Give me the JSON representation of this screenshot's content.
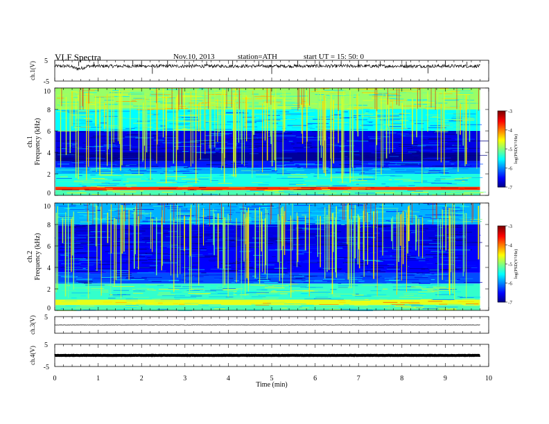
{
  "header": {
    "title": "VLF  Spectra",
    "date": "Nov.10, 2013",
    "station": "station=ATH",
    "start": "start  UT  =   15: 50: 0"
  },
  "chart_data": [
    {
      "type": "line",
      "panel": "ch1",
      "ylabel": "ch.1(V)",
      "ylim": [
        -5,
        5
      ],
      "yticks": [
        "5",
        "-5"
      ],
      "baseline_v": 2.2,
      "spikes": [
        {
          "t": 0.55,
          "v": 4.5
        },
        {
          "t": 0.9,
          "v": 4.2
        },
        {
          "t": 1.8,
          "v": 4.6
        },
        {
          "t": 2.0,
          "v": 4.4
        },
        {
          "t": 2.25,
          "v": -1.5
        },
        {
          "t": 2.6,
          "v": 4.7
        },
        {
          "t": 3.1,
          "v": 4.3
        },
        {
          "t": 3.5,
          "v": 4.5
        },
        {
          "t": 4.1,
          "v": 4.8
        },
        {
          "t": 4.7,
          "v": 4.6
        },
        {
          "t": 5.0,
          "v": -1.6
        },
        {
          "t": 5.6,
          "v": 4.6
        },
        {
          "t": 6.1,
          "v": 4.5
        },
        {
          "t": 6.6,
          "v": 4.3
        },
        {
          "t": 7.0,
          "v": 4.7
        },
        {
          "t": 7.5,
          "v": 4.6
        },
        {
          "t": 8.1,
          "v": 4.4
        },
        {
          "t": 8.6,
          "v": -1.3
        },
        {
          "t": 9.0,
          "v": 4.6
        },
        {
          "t": 9.5,
          "v": 4.3
        }
      ]
    },
    {
      "type": "heatmap",
      "panel": "ch1-spectrogram",
      "ylabel": "ch.1\nFrequency  (kHz)",
      "ylim": [
        0,
        10
      ],
      "yticks": [
        "0",
        "2",
        "4",
        "6",
        "8",
        "10"
      ],
      "colorbar": {
        "label": "log(PSD(V²/Hz)",
        "ticks": [
          "-3",
          "-4",
          "-5",
          "-6",
          "-7"
        ],
        "range": [
          -7,
          -3
        ]
      },
      "bands": [
        {
          "f0": 0.0,
          "f1": 0.5,
          "level": -5.2
        },
        {
          "f0": 0.5,
          "f1": 0.8,
          "level": -3.7
        },
        {
          "f0": 0.8,
          "f1": 2.0,
          "level": -5.4
        },
        {
          "f0": 2.0,
          "f1": 2.6,
          "level": -5.8
        },
        {
          "f0": 2.6,
          "f1": 3.2,
          "level": -6.4
        },
        {
          "f0": 3.2,
          "f1": 4.0,
          "level": -6.9
        },
        {
          "f0": 4.0,
          "f1": 6.0,
          "level": -6.6
        },
        {
          "f0": 6.0,
          "f1": 8.0,
          "level": -5.5
        },
        {
          "f0": 8.0,
          "f1": 10.0,
          "level": -4.9
        }
      ]
    },
    {
      "type": "heatmap",
      "panel": "ch2-spectrogram",
      "ylabel": "ch.2\nFrequency  (kHz)",
      "ylim": [
        0,
        10
      ],
      "yticks": [
        "0",
        "2",
        "4",
        "6",
        "8",
        "10"
      ],
      "colorbar": {
        "label": "log(PSD(V²/Hz)",
        "ticks": [
          "-3",
          "-4",
          "-5",
          "-6",
          "-7"
        ],
        "range": [
          -7,
          -3
        ]
      },
      "bands": [
        {
          "f0": 0.0,
          "f1": 0.5,
          "level": -5.2
        },
        {
          "f0": 0.5,
          "f1": 1.0,
          "level": -4.6
        },
        {
          "f0": 1.0,
          "f1": 2.5,
          "level": -5.3
        },
        {
          "f0": 2.5,
          "f1": 3.5,
          "level": -6.2
        },
        {
          "f0": 3.5,
          "f1": 6.0,
          "level": -6.5
        },
        {
          "f0": 6.0,
          "f1": 8.0,
          "level": -6.6
        },
        {
          "f0": 8.0,
          "f1": 10.0,
          "level": -5.8
        }
      ]
    },
    {
      "type": "line",
      "panel": "ch3",
      "ylabel": "ch.3(V)",
      "ylim": [
        -5,
        5
      ],
      "yticks": [
        "5"
      ],
      "baseline_v": 0.0
    },
    {
      "type": "line",
      "panel": "ch4",
      "ylabel": "ch.4(V)",
      "ylim": [
        -5,
        5
      ],
      "yticks": [
        "5",
        "-5"
      ],
      "baseline_v": 0.0
    }
  ],
  "x_axis": {
    "label": "Time  (min)",
    "range": [
      0,
      10
    ],
    "ticks": [
      "0",
      "1",
      "2",
      "3",
      "4",
      "5",
      "6",
      "7",
      "8",
      "9",
      "10"
    ],
    "data_end": 9.8
  },
  "colors": {
    "axis": "#000000",
    "background": "#ffffff"
  }
}
